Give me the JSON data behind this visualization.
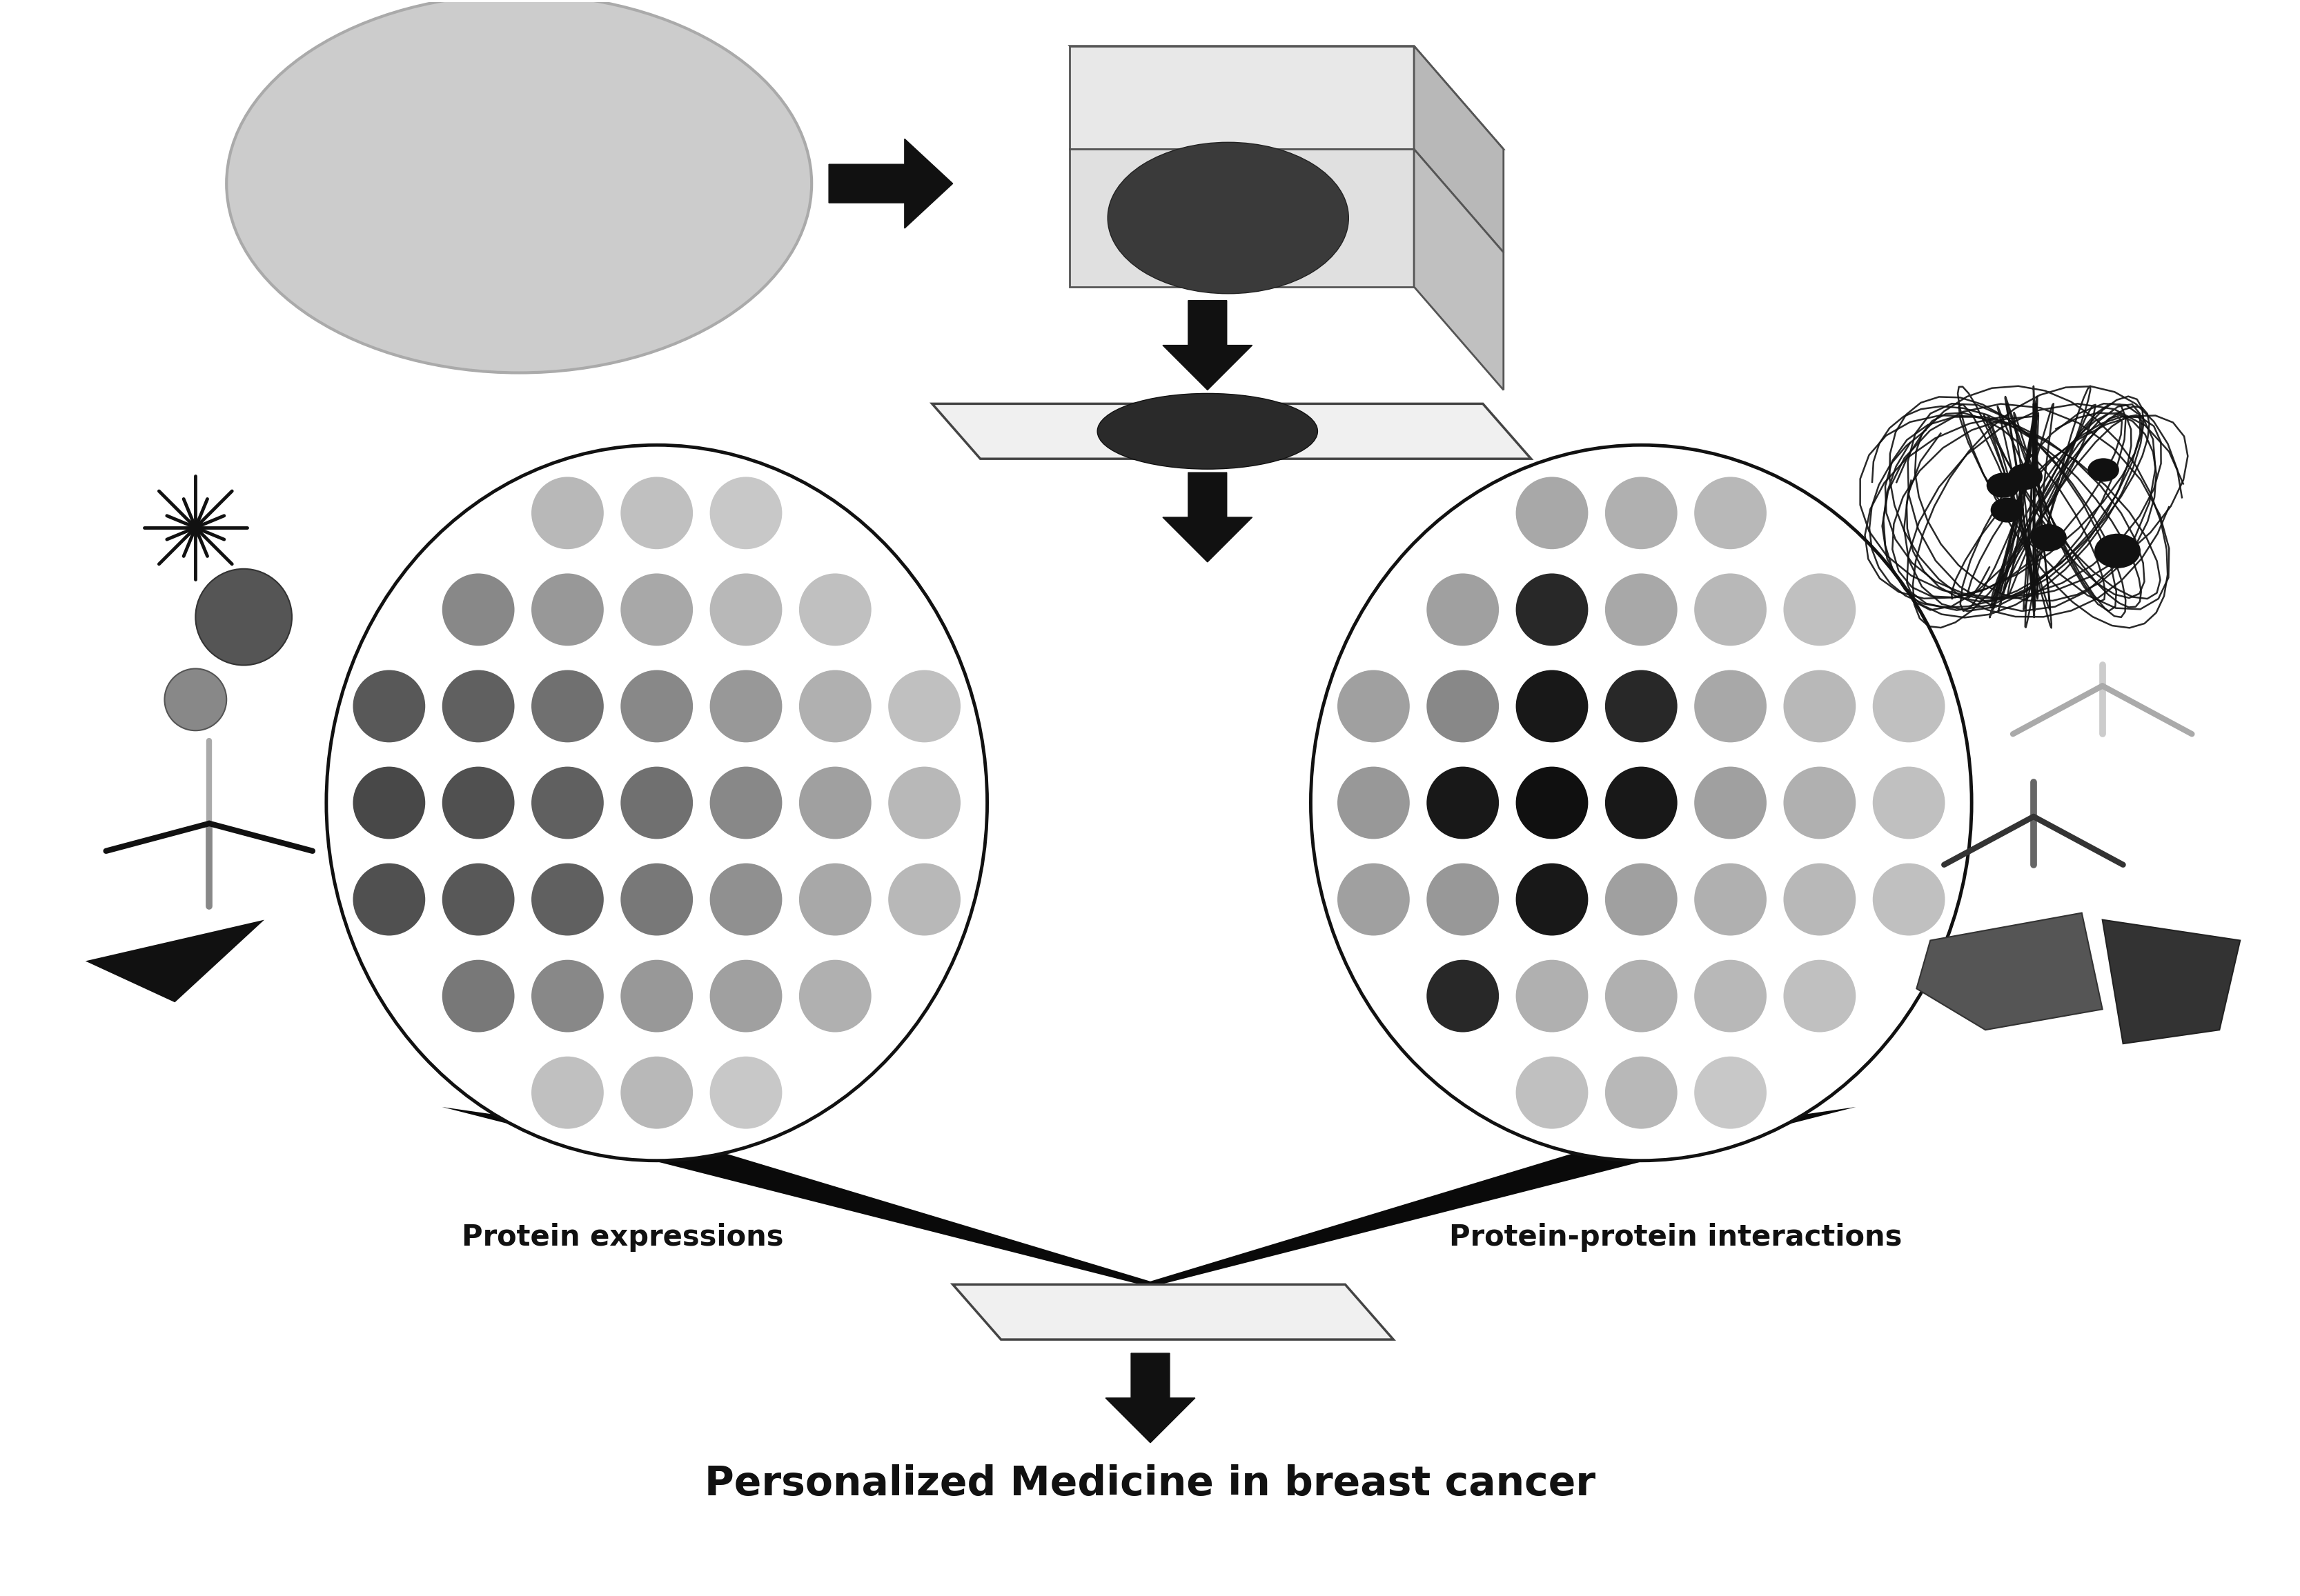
{
  "title": "Personalized Medicine in breast cancer",
  "title_fontsize": 42,
  "title_fontweight": "bold",
  "label_left": "Protein expressions",
  "label_right": "Protein-protein interactions",
  "label_fontsize": 30,
  "label_fontweight": "bold",
  "bg_color": "#ffffff",
  "tissue_color": "#cccccc",
  "arrow_color": "#111111",
  "circle_outline": "#111111",
  "dot_colors_left": [
    "#c0c0c0",
    "#b8b8b8",
    "#c0c0c0",
    "#b8b8b8",
    "#c8c8c8",
    "#c0c0c0",
    "#c8c8c8",
    "#909090",
    "#787878",
    "#888888",
    "#989898",
    "#a0a0a0",
    "#b0b0b0",
    "#c0c0c0",
    "#505050",
    "#585858",
    "#606060",
    "#787878",
    "#909090",
    "#a8a8a8",
    "#b8b8b8",
    "#484848",
    "#505050",
    "#606060",
    "#707070",
    "#888888",
    "#a0a0a0",
    "#b8b8b8",
    "#585858",
    "#606060",
    "#707070",
    "#888888",
    "#989898",
    "#b0b0b0",
    "#c0c0c0",
    "#787878",
    "#888888",
    "#989898",
    "#a8a8a8",
    "#b8b8b8",
    "#c0c0c0",
    "#c8c8c8",
    "#a0a0a0",
    "#a8a8a8",
    "#b8b8b8",
    "#c0c0c0",
    "#c8c8c8",
    "#d0d0d0",
    "#d8d8d8"
  ],
  "dot_colors_right": [
    "#c0c0c0",
    "#b8b8b8",
    "#c0c0c0",
    "#b8b8b8",
    "#c8c8c8",
    "#c0c0c0",
    "#c8c8c8",
    "#b0b0b0",
    "#282828",
    "#b0b0b0",
    "#b0b0b0",
    "#b8b8b8",
    "#c0c0c0",
    "#c8c8c8",
    "#a0a0a0",
    "#989898",
    "#181818",
    "#a0a0a0",
    "#b0b0b0",
    "#b8b8b8",
    "#c0c0c0",
    "#989898",
    "#181818",
    "#101010",
    "#181818",
    "#a0a0a0",
    "#b0b0b0",
    "#c0c0c0",
    "#a0a0a0",
    "#888888",
    "#181818",
    "#282828",
    "#a8a8a8",
    "#b8b8b8",
    "#c0c0c0",
    "#b0b0b0",
    "#a0a0a0",
    "#282828",
    "#a8a8a8",
    "#b8b8b8",
    "#c0c0c0",
    "#c8c8c8",
    "#b8b8b8",
    "#b0b0b0",
    "#a8a8a8",
    "#b0b0b0",
    "#b8b8b8",
    "#c0c0c0",
    "#c8c8c8"
  ]
}
